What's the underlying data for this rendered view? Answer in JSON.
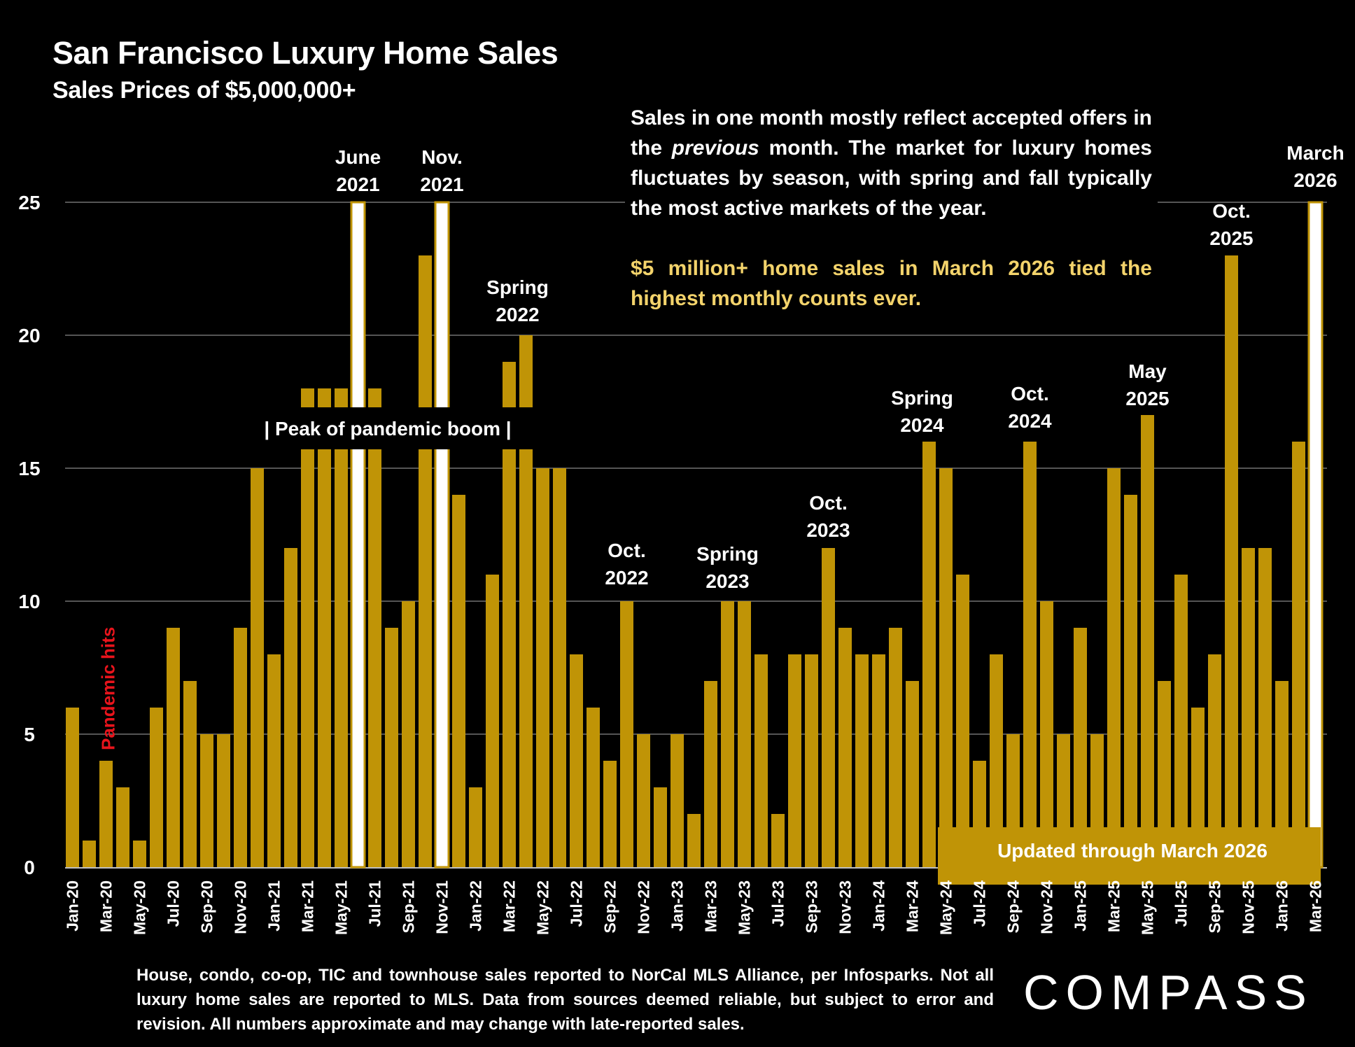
{
  "header": {
    "title": "San Francisco Luxury Home Sales",
    "subtitle": "Sales Prices of $5,000,000+"
  },
  "note": {
    "text_pre": "Sales in one month mostly reflect accepted offers in the ",
    "text_em": "previous",
    "text_post": " month. The market for luxury homes fluctuates by season, with spring and fall typically the most active markets of the year.",
    "highlight": "$5 million+ home sales in March 2026 tied the highest monthly counts ever.",
    "highlight_color": "#f3d36b"
  },
  "footnote": "House, condo, co-op, TIC and townhouse sales reported to NorCal MLS Alliance, per  Infosparks. Not all luxury home sales are reported to MLS. Data from sources deemed reliable, but subject to error and revision. All numbers approximate and may change with late-reported sales.",
  "logo": "COMPASS",
  "colors": {
    "bar": "#c09406",
    "highlight_bar": "#ffffff",
    "background": "#000000",
    "pandemic_label": "#e8141c",
    "gridline": "#555555"
  },
  "chart_data": {
    "type": "bar",
    "title": "San Francisco Luxury Home Sales",
    "subtitle": "Sales Prices of $5,000,000+",
    "xlabel": "",
    "ylabel": "",
    "ylim": [
      0,
      25
    ],
    "yticks": [
      0,
      5,
      10,
      15,
      20,
      25
    ],
    "grid": true,
    "categories": [
      "Jan-20",
      "Feb-20",
      "Mar-20",
      "Apr-20",
      "May-20",
      "Jun-20",
      "Jul-20",
      "Aug-20",
      "Sep-20",
      "Oct-20",
      "Nov-20",
      "Dec-20",
      "Jan-21",
      "Feb-21",
      "Mar-21",
      "Apr-21",
      "May-21",
      "Jun-21",
      "Jul-21",
      "Aug-21",
      "Sep-21",
      "Oct-21",
      "Nov-21",
      "Dec-21",
      "Jan-22",
      "Feb-22",
      "Mar-22",
      "Apr-22",
      "May-22",
      "Jun-22",
      "Jul-22",
      "Aug-22",
      "Sep-22",
      "Oct-22",
      "Nov-22",
      "Dec-22",
      "Jan-23",
      "Feb-23",
      "Mar-23",
      "Apr-23",
      "May-23",
      "Jun-23",
      "Jul-23",
      "Aug-23",
      "Sep-23",
      "Oct-23",
      "Nov-23",
      "Dec-23",
      "Jan-24",
      "Feb-24",
      "Mar-24",
      "Apr-24",
      "May-24",
      "Jun-24",
      "Jul-24",
      "Aug-24",
      "Sep-24",
      "Oct-24",
      "Nov-24",
      "Dec-24",
      "Jan-25",
      "Feb-25",
      "Mar-25",
      "Apr-25",
      "May-25",
      "Jun-25",
      "Jul-25",
      "Aug-25",
      "Sep-25",
      "Oct-25",
      "Nov-25",
      "Dec-25",
      "Jan-26",
      "Feb-26",
      "Mar-26"
    ],
    "tick_label_every": 2,
    "values": [
      6,
      1,
      4,
      3,
      1,
      6,
      9,
      7,
      5,
      5,
      9,
      15,
      8,
      12,
      18,
      18,
      18,
      25,
      18,
      9,
      10,
      23,
      25,
      14,
      3,
      11,
      19,
      20,
      15,
      15,
      8,
      6,
      4,
      10,
      5,
      3,
      5,
      2,
      7,
      10,
      10,
      8,
      2,
      8,
      8,
      12,
      9,
      8,
      8,
      9,
      7,
      16,
      15,
      11,
      4,
      8,
      5,
      16,
      10,
      5,
      9,
      5,
      15,
      14,
      17,
      7,
      11,
      6,
      8,
      23,
      12,
      12,
      7,
      16,
      25
    ],
    "highlighted": [
      "Jun-21",
      "Nov-21",
      "Mar-26"
    ],
    "annotations": [
      {
        "text": [
          "June",
          "2021"
        ],
        "category": "Jun-21"
      },
      {
        "text": [
          "Nov.",
          "2021"
        ],
        "category": "Nov-21"
      },
      {
        "text": [
          "Spring",
          "2022"
        ],
        "category": "Apr-22"
      },
      {
        "text": [
          "Oct.",
          "2022"
        ],
        "category": "Oct-22"
      },
      {
        "text": [
          "Spring",
          "2023"
        ],
        "category": "Apr-23"
      },
      {
        "text": [
          "Oct.",
          "2023"
        ],
        "category": "Oct-23"
      },
      {
        "text": [
          "Spring",
          "2024"
        ],
        "category": "Apr-24"
      },
      {
        "text": [
          "Oct.",
          "2024"
        ],
        "category": "Oct-24"
      },
      {
        "text": [
          "May",
          "2025"
        ],
        "category": "May-25"
      },
      {
        "text": [
          "Oct.",
          "2025"
        ],
        "category": "Oct-25"
      },
      {
        "text": [
          "March",
          "2026"
        ],
        "category": "Mar-26"
      }
    ],
    "pandemic_label": "Pandemic hits",
    "pandemic_label_category": "Mar-20",
    "band_label": "|   Peak of pandemic boom   |",
    "band_range": [
      "Dec-20",
      "Apr-22"
    ],
    "band_value": 16.5,
    "updated_label": "Updated through March 2026",
    "updated_range": [
      "May-24",
      "Mar-26"
    ]
  }
}
